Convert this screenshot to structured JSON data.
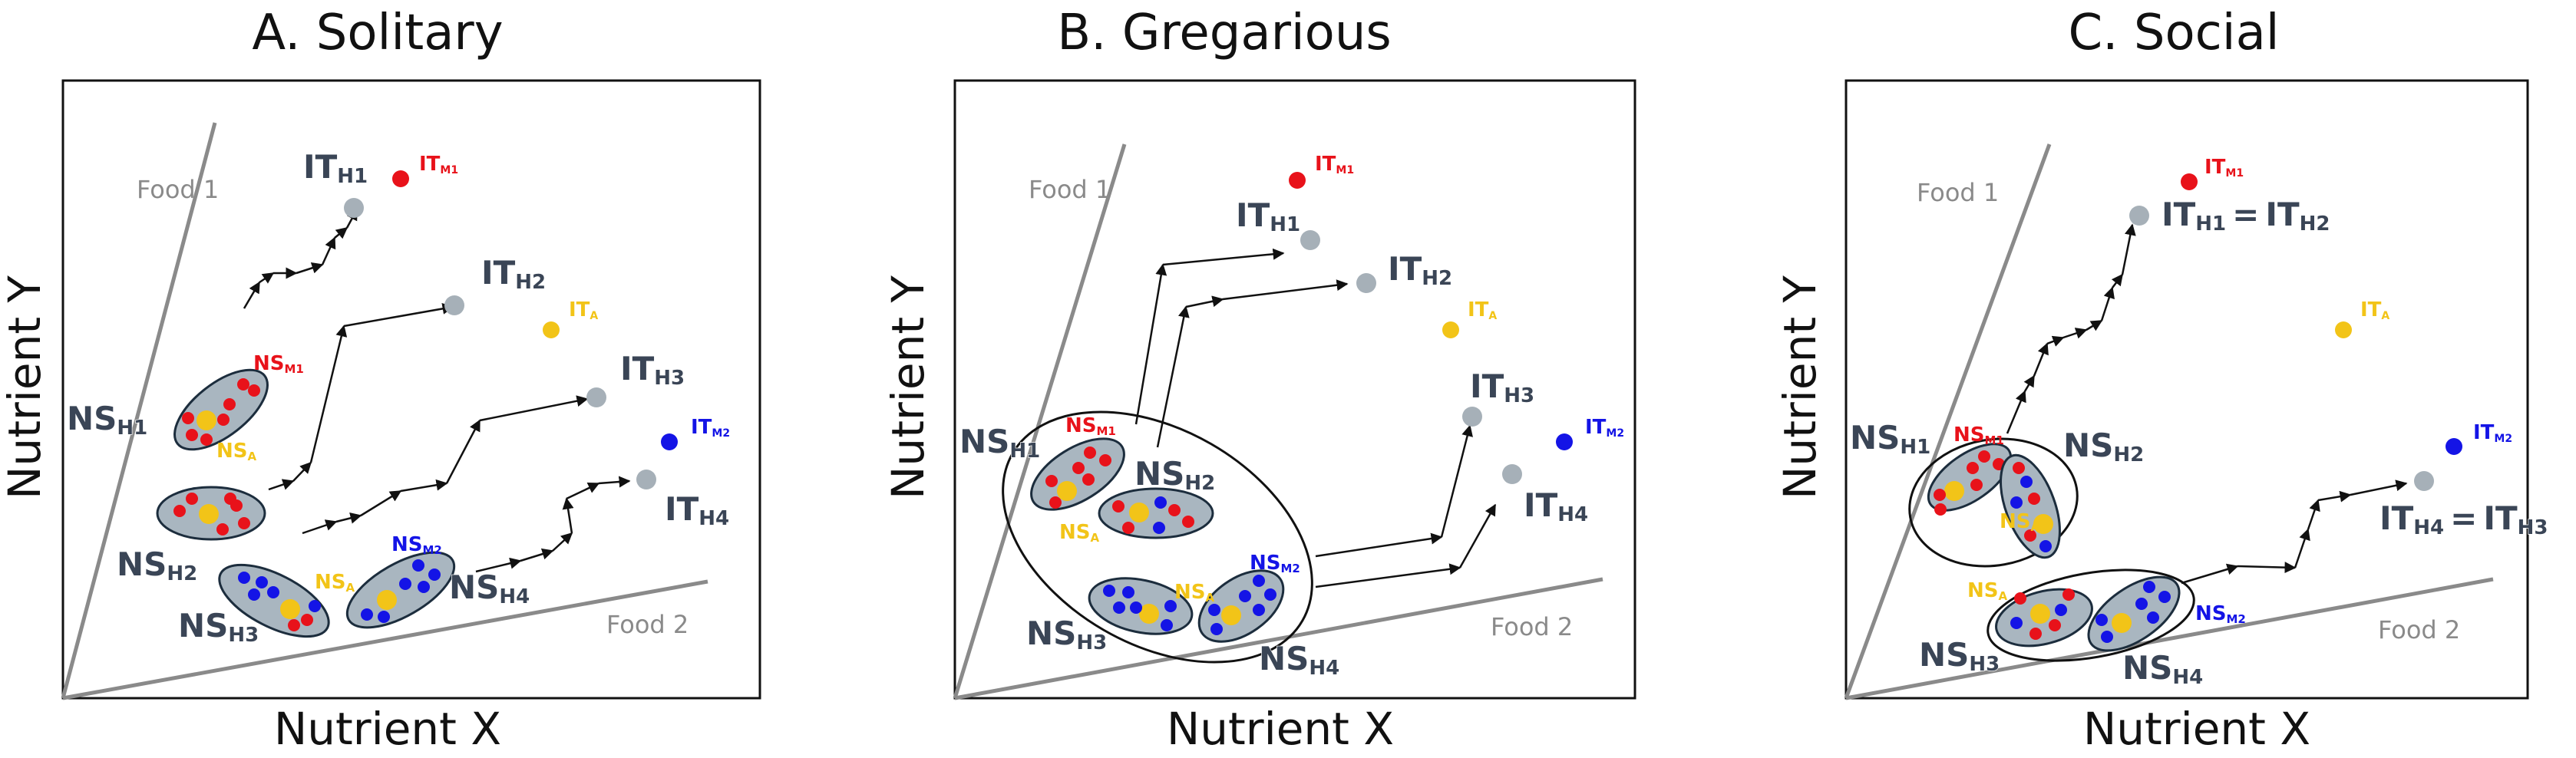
{
  "panels": [
    {
      "title": "A. Solitary",
      "ylabel": "Nutrient Y",
      "xlabel": "Nutrient X",
      "food1": "Food 1",
      "food2": "Food 2",
      "labels": {
        "it_h1": "IT",
        "it_h1_sub": "H1",
        "it_m1": "IT",
        "it_m1_sub": "M1",
        "it_h2": "IT",
        "it_h2_sub": "H2",
        "it_a": "IT",
        "it_a_sub": "A",
        "it_h3": "IT",
        "it_h3_sub": "H3",
        "it_m2": "IT",
        "it_m2_sub": "M2",
        "it_h4": "IT",
        "it_h4_sub": "H4",
        "ns_h1": "NS",
        "ns_h1_sub": "H1",
        "ns_m1": "NS",
        "ns_m1_sub": "M1",
        "ns_a1": "NS",
        "ns_a1_sub": "A",
        "ns_h2": "NS",
        "ns_h2_sub": "H2",
        "ns_a2": "NS",
        "ns_a2_sub": "A",
        "ns_m2": "NS",
        "ns_m2_sub": "M2",
        "ns_h3": "NS",
        "ns_h3_sub": "H3",
        "ns_h4": "NS",
        "ns_h4_sub": "H4"
      }
    },
    {
      "title": "B. Gregarious",
      "ylabel": "Nutrient Y",
      "xlabel": "Nutrient X",
      "food1": "Food 1",
      "food2": "Food 2",
      "labels": {
        "it_m1": "IT",
        "it_m1_sub": "M1",
        "it_h1": "IT",
        "it_h1_sub": "H1",
        "it_h2": "IT",
        "it_h2_sub": "H2",
        "it_a": "IT",
        "it_a_sub": "A",
        "it_h3": "IT",
        "it_h3_sub": "H3",
        "it_m2": "IT",
        "it_m2_sub": "M2",
        "it_h4": "IT",
        "it_h4_sub": "H4",
        "ns_h1": "NS",
        "ns_h1_sub": "H1",
        "ns_m1": "NS",
        "ns_m1_sub": "M1",
        "ns_h2": "NS",
        "ns_h2_sub": "H2",
        "ns_a1": "NS",
        "ns_a1_sub": "A",
        "ns_a2": "NS",
        "ns_a2_sub": "A",
        "ns_m2": "NS",
        "ns_m2_sub": "M2",
        "ns_h3": "NS",
        "ns_h3_sub": "H3",
        "ns_h4": "NS",
        "ns_h4_sub": "H4"
      }
    },
    {
      "title": "C. Social",
      "ylabel": "Nutrient Y",
      "xlabel": "Nutrient X",
      "food1": "Food 1",
      "food2": "Food 2",
      "labels": {
        "it_m1": "IT",
        "it_m1_sub": "M1",
        "it_h12_a": "IT",
        "it_h12_a_sub": "H1",
        "it_h12_eq": "=",
        "it_h12_b": "IT",
        "it_h12_b_sub": "H2",
        "it_a": "IT",
        "it_a_sub": "A",
        "it_m2": "IT",
        "it_m2_sub": "M2",
        "it_h43_a": "IT",
        "it_h43_a_sub": "H4",
        "it_h43_eq": "=",
        "it_h43_b": "IT",
        "it_h43_b_sub": "H3",
        "ns_h1": "NS",
        "ns_h1_sub": "H1",
        "ns_m1": "NS",
        "ns_m1_sub": "M1",
        "ns_h2": "NS",
        "ns_h2_sub": "H2",
        "ns_a1": "NS",
        "ns_a1_sub": "A",
        "ns_a2": "NS",
        "ns_a2_sub": "A",
        "ns_m2": "NS",
        "ns_m2_sub": "M2",
        "ns_h3": "NS",
        "ns_h3_sub": "H3",
        "ns_h4": "NS",
        "ns_h4_sub": "H4"
      }
    }
  ],
  "colors": {
    "host_target": "#a6b0b8",
    "cluster_fill": "#a9b6c0",
    "red_microbe": "#e8121a",
    "blue_microbe": "#1414e6",
    "yellow_microbe": "#f2c418",
    "rail": "#8a8a8a",
    "label_dark": "#3a4556"
  },
  "icons": {
    "host_intake_target": "grey-dot-icon",
    "microbe_intake_target": "colored-dot-icon",
    "nutritional_state": "cluster-ellipse-icon",
    "trajectory": "arrow-icon"
  }
}
